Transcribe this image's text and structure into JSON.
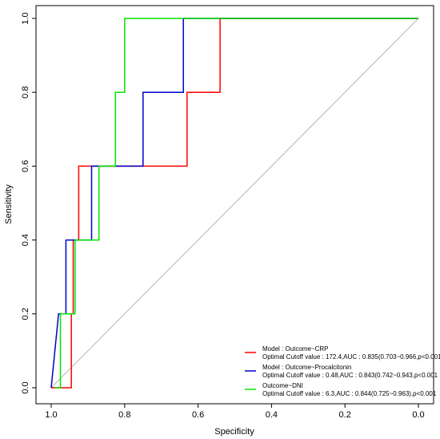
{
  "chart_data": {
    "type": "line",
    "title": "",
    "xlabel": "Specificity",
    "ylabel": "Sensitivity",
    "xlim": [
      1.0,
      0.0
    ],
    "ylim": [
      0.0,
      1.0
    ],
    "x_reversed": true,
    "grid": false,
    "legend_position": "bottom-right",
    "x_ticks": [
      "1.0",
      "0.8",
      "0.6",
      "0.4",
      "0.2",
      "0.0"
    ],
    "y_ticks": [
      "0.0",
      "0.2",
      "0.4",
      "0.6",
      "0.8",
      "1.0"
    ],
    "reference_line": {
      "from": [
        1.0,
        0.0
      ],
      "to": [
        0.0,
        1.0
      ],
      "color": "#b4b4b4"
    },
    "series": [
      {
        "name": "Model : Outcome~CRP",
        "legend_detail": "Optimal Cutoff value : 172.4,AUC : 0.835(0.703~0.966,p<0.001",
        "color": "#ff0000",
        "specificity": [
          1.0,
          0.945,
          0.945,
          0.94,
          0.94,
          0.925,
          0.925,
          0.63,
          0.63,
          0.54,
          0.54,
          0.0
        ],
        "sensitivity": [
          0.0,
          0.0,
          0.2,
          0.2,
          0.4,
          0.4,
          0.6,
          0.6,
          0.8,
          0.8,
          1.0,
          1.0
        ]
      },
      {
        "name": "Model : Outcome~Procalcitonin",
        "legend_detail": "Optimal Cutoff value : 0.48,AUC : 0.843(0.742~0.943,p<0.001",
        "color": "#0000cc",
        "specificity": [
          1.0,
          0.98,
          0.96,
          0.96,
          0.93,
          0.93,
          0.89,
          0.89,
          0.88,
          0.88,
          0.75,
          0.75,
          0.64,
          0.64,
          0.0
        ],
        "sensitivity": [
          0.0,
          0.2,
          0.2,
          0.4,
          0.4,
          0.4,
          0.4,
          0.6,
          0.6,
          0.6,
          0.6,
          0.8,
          0.8,
          1.0,
          1.0
        ]
      },
      {
        "name": "Outcome~DNI",
        "legend_detail": "Optimal Cutoff value : 6.3,AUC : 0.844(0.725~0.963),p<0.001",
        "color": "#00e600",
        "specificity": [
          0.99,
          0.975,
          0.975,
          0.935,
          0.935,
          0.87,
          0.87,
          0.825,
          0.825,
          0.8,
          0.8,
          0.0
        ],
        "sensitivity": [
          0.0,
          0.0,
          0.2,
          0.2,
          0.4,
          0.4,
          0.6,
          0.6,
          0.8,
          0.8,
          1.0,
          1.0
        ]
      }
    ]
  }
}
